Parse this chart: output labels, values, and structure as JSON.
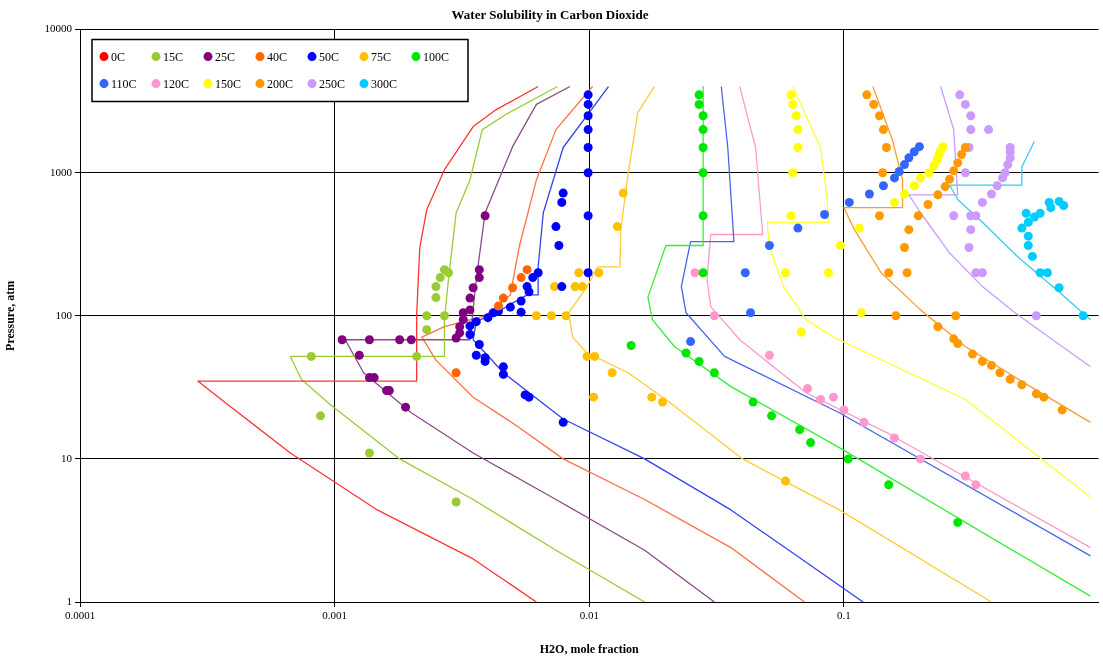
{
  "chart_data": {
    "type": "scatter",
    "title": "Water Solubility in Carbon Dioxide",
    "xlabel": "H2O, mole fraction",
    "ylabel": "Pressure, atm",
    "log": "xy",
    "xlim": [
      0.0001,
      1
    ],
    "xticks": [
      0.0001,
      0.001,
      0.01,
      0.1
    ],
    "ylim": [
      1,
      10000
    ],
    "yticks": [
      1,
      10,
      100,
      1000,
      10000
    ],
    "grid": true,
    "legend": "top left",
    "marker": "circle",
    "line_style": "solid",
    "series": [
      {
        "name": "0C",
        "color": "#ff0000"
      },
      {
        "name": "15C",
        "color": "#99cc33",
        "x": [
          0.00081,
          0.00088,
          0.00137,
          0.003,
          0.0021,
          0.0023,
          0.0023,
          0.0027,
          0.0025,
          0.0025,
          0.0026,
          0.0027,
          0.0028
        ],
        "values": [
          52,
          20,
          11,
          5,
          52,
          80,
          100,
          100,
          134,
          160,
          185,
          210,
          200
        ]
      },
      {
        "name": "25C",
        "color": "#800080",
        "x": [
          0.00107,
          0.00137,
          0.0018,
          0.002,
          0.00125,
          0.00137,
          0.00143,
          0.0016,
          0.00164,
          0.0019,
          0.0039,
          0.0037,
          0.0037,
          0.0035,
          0.0034,
          0.0034,
          0.0032,
          0.0032,
          0.0031,
          0.0031,
          0.003
        ],
        "values": [
          68,
          68,
          68,
          68,
          53,
          37,
          37,
          30,
          30,
          23,
          500,
          210,
          185,
          157,
          133,
          110,
          105,
          94,
          84,
          76,
          70
        ]
      },
      {
        "name": "40C",
        "color": "#ff6600",
        "x": [
          0.0057,
          0.0054,
          0.005,
          0.0046,
          0.0044,
          0.003
        ],
        "values": [
          210,
          185,
          157,
          133,
          117,
          40
        ]
      },
      {
        "name": "50C",
        "color": "#0000ff",
        "x": [
          0.0099,
          0.0099,
          0.0099,
          0.0099,
          0.0099,
          0.0099,
          0.0099,
          0.0099,
          0.0079,
          0.0078,
          0.0074,
          0.0076,
          0.0063,
          0.006,
          0.0057,
          0.0058,
          0.0078,
          0.0054,
          0.0049,
          0.0044,
          0.0042,
          0.0054,
          0.004,
          0.0036,
          0.0034,
          0.0034,
          0.0037,
          0.0036,
          0.0039,
          0.0039,
          0.0046,
          0.0046,
          0.0056,
          0.0058,
          0.0079
        ],
        "values": [
          3500,
          3000,
          2500,
          2000,
          1500,
          1000,
          500,
          200,
          720,
          620,
          420,
          310,
          200,
          185,
          160,
          147,
          160,
          127,
          115,
          108,
          105,
          106,
          97,
          91,
          85,
          74,
          63,
          53,
          51,
          48,
          44,
          39,
          28,
          27,
          18
        ]
      },
      {
        "name": "75C",
        "color": "#ffc000",
        "x": [
          0.0136,
          0.0129,
          0.0091,
          0.0109,
          0.0073,
          0.0088,
          0.0094,
          0.0062,
          0.0071,
          0.0081,
          0.0098,
          0.0105,
          0.0123,
          0.0104,
          0.0176,
          0.0194,
          0.059
        ],
        "values": [
          720,
          420,
          200,
          200,
          160,
          160,
          160,
          100,
          100,
          100,
          52,
          52,
          40,
          27,
          27,
          25,
          7
        ]
      },
      {
        "name": "100C",
        "color": "#00e600",
        "x": [
          0.027,
          0.027,
          0.028,
          0.028,
          0.028,
          0.028,
          0.028,
          0.028,
          0.0146,
          0.024,
          0.027,
          0.031,
          0.044,
          0.052,
          0.067,
          0.074,
          0.104,
          0.15,
          0.28
        ],
        "values": [
          3500,
          3000,
          2500,
          2000,
          1500,
          1000,
          500,
          200,
          62,
          55,
          48,
          40,
          25,
          20,
          16,
          13,
          10,
          6.6,
          3.6
        ]
      },
      {
        "name": "110C",
        "color": "#3366ff",
        "x": [
          0.025,
          0.041,
          0.043,
          0.051,
          0.066,
          0.084,
          0.105,
          0.126,
          0.143,
          0.158,
          0.165,
          0.173,
          0.18,
          0.189,
          0.198
        ],
        "values": [
          66,
          200,
          105,
          310,
          410,
          510,
          620,
          710,
          810,
          920,
          1020,
          1140,
          1270,
          1400,
          1520
        ]
      },
      {
        "name": "120C",
        "color": "#ff99cc",
        "x": [
          0.026,
          0.031,
          0.051,
          0.072,
          0.081,
          0.091,
          0.1,
          0.12,
          0.158,
          0.2,
          0.3,
          0.33
        ],
        "values": [
          200,
          100,
          53,
          31,
          26,
          27,
          22,
          18,
          14,
          10,
          7.6,
          6.6
        ]
      },
      {
        "name": "150C",
        "color": "#ffff00",
        "x": [
          0.062,
          0.063,
          0.065,
          0.066,
          0.066,
          0.063,
          0.062,
          0.059,
          0.087,
          0.068,
          0.097,
          0.115,
          0.117,
          0.158,
          0.173,
          0.189,
          0.2,
          0.216,
          0.226,
          0.232,
          0.237,
          0.24,
          0.245
        ],
        "values": [
          3500,
          3000,
          2500,
          2000,
          1500,
          1000,
          500,
          200,
          200,
          77,
          310,
          410,
          105,
          620,
          710,
          810,
          920,
          1000,
          1120,
          1230,
          1340,
          1430,
          1520
        ]
      },
      {
        "name": "200C",
        "color": "#ff9900",
        "x": [
          0.123,
          0.131,
          0.138,
          0.143,
          0.147,
          0.142,
          0.138,
          0.18,
          0.173,
          0.15,
          0.177,
          0.16,
          0.275,
          0.234,
          0.27,
          0.28,
          0.32,
          0.35,
          0.38,
          0.41,
          0.45,
          0.5,
          0.57,
          0.61,
          0.72,
          0.196,
          0.214,
          0.234,
          0.25,
          0.26,
          0.27,
          0.28,
          0.29,
          0.3
        ],
        "values": [
          3500,
          3000,
          2500,
          2000,
          1500,
          1000,
          500,
          400,
          300,
          200,
          200,
          100,
          100,
          84,
          69,
          64,
          54,
          48,
          45,
          40,
          36,
          33,
          28.5,
          27,
          22,
          500,
          600,
          700,
          800,
          900,
          1030,
          1170,
          1340,
          1500
        ]
      },
      {
        "name": "250C",
        "color": "#cc99ff",
        "x": [
          0.285,
          0.3,
          0.315,
          0.315,
          0.37,
          0.31,
          0.3,
          0.27,
          0.315,
          0.33,
          0.315,
          0.31,
          0.33,
          0.35,
          0.57,
          0.45,
          0.45,
          0.45,
          0.44,
          0.43,
          0.42,
          0.4,
          0.38,
          0.35
        ],
        "values": [
          3500,
          3000,
          2500,
          2000,
          2000,
          1500,
          1000,
          500,
          500,
          500,
          400,
          300,
          200,
          200,
          100,
          1500,
          1400,
          1270,
          1140,
          1000,
          920,
          810,
          710,
          620
        ]
      },
      {
        "name": "300C",
        "color": "#00ccff",
        "x": [
          0.64,
          0.7,
          0.73,
          0.65,
          0.59,
          0.56,
          0.52,
          0.53,
          0.5,
          0.53,
          0.53,
          0.55,
          0.59,
          0.63,
          0.7,
          0.87
        ],
        "values": [
          620,
          630,
          590,
          570,
          520,
          490,
          520,
          450,
          410,
          360,
          310,
          260,
          200,
          200,
          157,
          100
        ]
      },
      {
        "type": "line",
        "marker": "none",
        "color": "#ff3333",
        "x": [
          0.0063,
          0.0043,
          0.0035,
          0.0027,
          0.0023,
          0.00216,
          0.0021,
          0.0021,
          0.00029,
          0.00038,
          0.00067,
          0.00147,
          0.0035,
          0.0062
        ],
        "values": [
          4000,
          2750,
          2100,
          1050,
          550,
          300,
          102,
          35,
          35,
          24,
          11,
          4.4,
          2.0,
          1.0
        ]
      },
      {
        "type": "line",
        "marker": "none",
        "color": "#99cc33",
        "x": [
          0.0075,
          0.0047,
          0.0038,
          0.0034,
          0.003,
          0.0028,
          0.0027,
          0.0027,
          0.00067,
          0.00074,
          0.00096,
          0.0018,
          0.0035,
          0.0074,
          0.0165
        ],
        "values": [
          4000,
          2550,
          2000,
          890,
          525,
          180,
          94,
          52,
          52,
          36,
          24,
          10,
          5.2,
          2.3,
          1
        ]
      },
      {
        "type": "line",
        "marker": "none",
        "color": "#8b4a8b",
        "x": [
          0.0084,
          0.0062,
          0.005,
          0.0039,
          0.0036,
          0.0034,
          0.0011,
          0.0013,
          0.002,
          0.0035,
          0.0074,
          0.0165,
          0.031
        ],
        "values": [
          4000,
          3000,
          1520,
          525,
          180,
          68,
          68,
          40,
          21,
          11,
          5.2,
          2.3,
          1
        ]
      },
      {
        "type": "line",
        "marker": "none",
        "color": "#ff7043",
        "x": [
          0.0103,
          0.0074,
          0.0062,
          0.0053,
          0.0049,
          0.0039,
          0.0027,
          0.0022,
          0.0025,
          0.0035,
          0.0052,
          0.0079,
          0.0165,
          0.036,
          0.07
        ],
        "values": [
          4000,
          2000,
          890,
          300,
          140,
          100,
          84,
          71,
          49,
          27,
          17,
          10,
          5.2,
          2.4,
          1
        ]
      },
      {
        "type": "line",
        "marker": "none",
        "color": "#3344ee",
        "x": [
          0.0119,
          0.0079,
          0.0066,
          0.0063,
          0.0063,
          0.0057,
          0.0043,
          0.0036,
          0.0035,
          0.0046,
          0.0079,
          0.0165,
          0.036,
          0.119
        ],
        "values": [
          4000,
          1500,
          525,
          220,
          140,
          140,
          105,
          91,
          68,
          40,
          19,
          10,
          4.4,
          1
        ]
      },
      {
        "type": "line",
        "marker": "none",
        "color": "#ffcc33",
        "x": [
          0.018,
          0.0155,
          0.0141,
          0.0133,
          0.0132,
          0.0108,
          0.0098,
          0.0083,
          0.0086,
          0.0098,
          0.0142,
          0.02,
          0.04,
          0.096,
          0.38
        ],
        "values": [
          4000,
          2630,
          890,
          400,
          220,
          220,
          160,
          105,
          71,
          55,
          40,
          26,
          10,
          4.4,
          1
        ]
      },
      {
        "type": "line",
        "marker": "none",
        "color": "#33ee33",
        "x": [
          0.028,
          0.028,
          0.02,
          0.017,
          0.0177,
          0.0216,
          0.036,
          0.096,
          0.3,
          0.93
        ],
        "values": [
          4000,
          310,
          310,
          135,
          94,
          61,
          32,
          12,
          3.6,
          1.1
        ]
      },
      {
        "type": "line",
        "marker": "none",
        "color": "#4466ee",
        "x": [
          0.033,
          0.035,
          0.037,
          0.025,
          0.023,
          0.024,
          0.034,
          0.096,
          0.93
        ],
        "values": [
          4000,
          1500,
          330,
          330,
          160,
          105,
          52,
          21,
          2.1
        ]
      },
      {
        "type": "line",
        "marker": "none",
        "color": "#ff99cc",
        "x": [
          0.039,
          0.045,
          0.048,
          0.03,
          0.029,
          0.03,
          0.039,
          0.071,
          0.15,
          0.93
        ],
        "values": [
          4000,
          1500,
          370,
          370,
          180,
          116,
          68,
          29,
          15,
          2.4
        ]
      },
      {
        "type": "line",
        "marker": "none",
        "color": "#ffff33",
        "x": [
          0.063,
          0.081,
          0.086,
          0.087,
          0.05,
          0.051,
          0.058,
          0.071,
          0.091,
          0.3,
          0.93
        ],
        "values": [
          4000,
          1500,
          650,
          450,
          450,
          300,
          160,
          94,
          71,
          26,
          5.4
        ]
      },
      {
        "type": "line",
        "marker": "none",
        "color": "#ff9933",
        "x": [
          0.13,
          0.155,
          0.17,
          0.17,
          0.1,
          0.11,
          0.14,
          0.2,
          0.3,
          0.54,
          0.93
        ],
        "values": [
          4000,
          1700,
          890,
          570,
          570,
          400,
          200,
          110,
          61,
          32,
          18
        ]
      },
      {
        "type": "line",
        "marker": "none",
        "color": "#cc99ff",
        "x": [
          0.24,
          0.27,
          0.28,
          0.18,
          0.2,
          0.26,
          0.35,
          0.47,
          0.93
        ],
        "values": [
          4000,
          2000,
          700,
          700,
          525,
          275,
          160,
          105,
          44
        ]
      },
      {
        "type": "line",
        "marker": "none",
        "color": "#33ccee",
        "x": [
          0.56,
          0.5,
          0.5,
          0.26,
          0.28,
          0.35,
          0.48,
          0.69,
          0.93
        ],
        "values": [
          1650,
          1100,
          820,
          820,
          650,
          450,
          260,
          150,
          94
        ]
      }
    ]
  }
}
